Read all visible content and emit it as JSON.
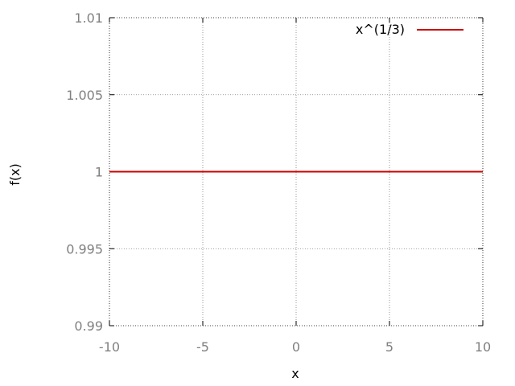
{
  "chart_data": {
    "type": "line",
    "title": "",
    "xlabel": "x",
    "ylabel": "f(x)",
    "xlim": [
      -10,
      10
    ],
    "ylim": [
      0.99,
      1.01
    ],
    "x_ticks": [
      -10,
      -5,
      0,
      5,
      10
    ],
    "x_tick_labels": [
      "-10",
      "-5",
      "0",
      "5",
      "10"
    ],
    "y_ticks": [
      0.99,
      0.995,
      1,
      1.005,
      1.01
    ],
    "y_tick_labels": [
      "0.99",
      "0.995",
      "1",
      "1.005",
      "1.01"
    ],
    "grid": true,
    "legend_position": "top-right",
    "series": [
      {
        "name": "x^(1/3)",
        "color": "#cc0000",
        "x": [
          -10,
          10
        ],
        "y": [
          1,
          1
        ]
      }
    ]
  }
}
